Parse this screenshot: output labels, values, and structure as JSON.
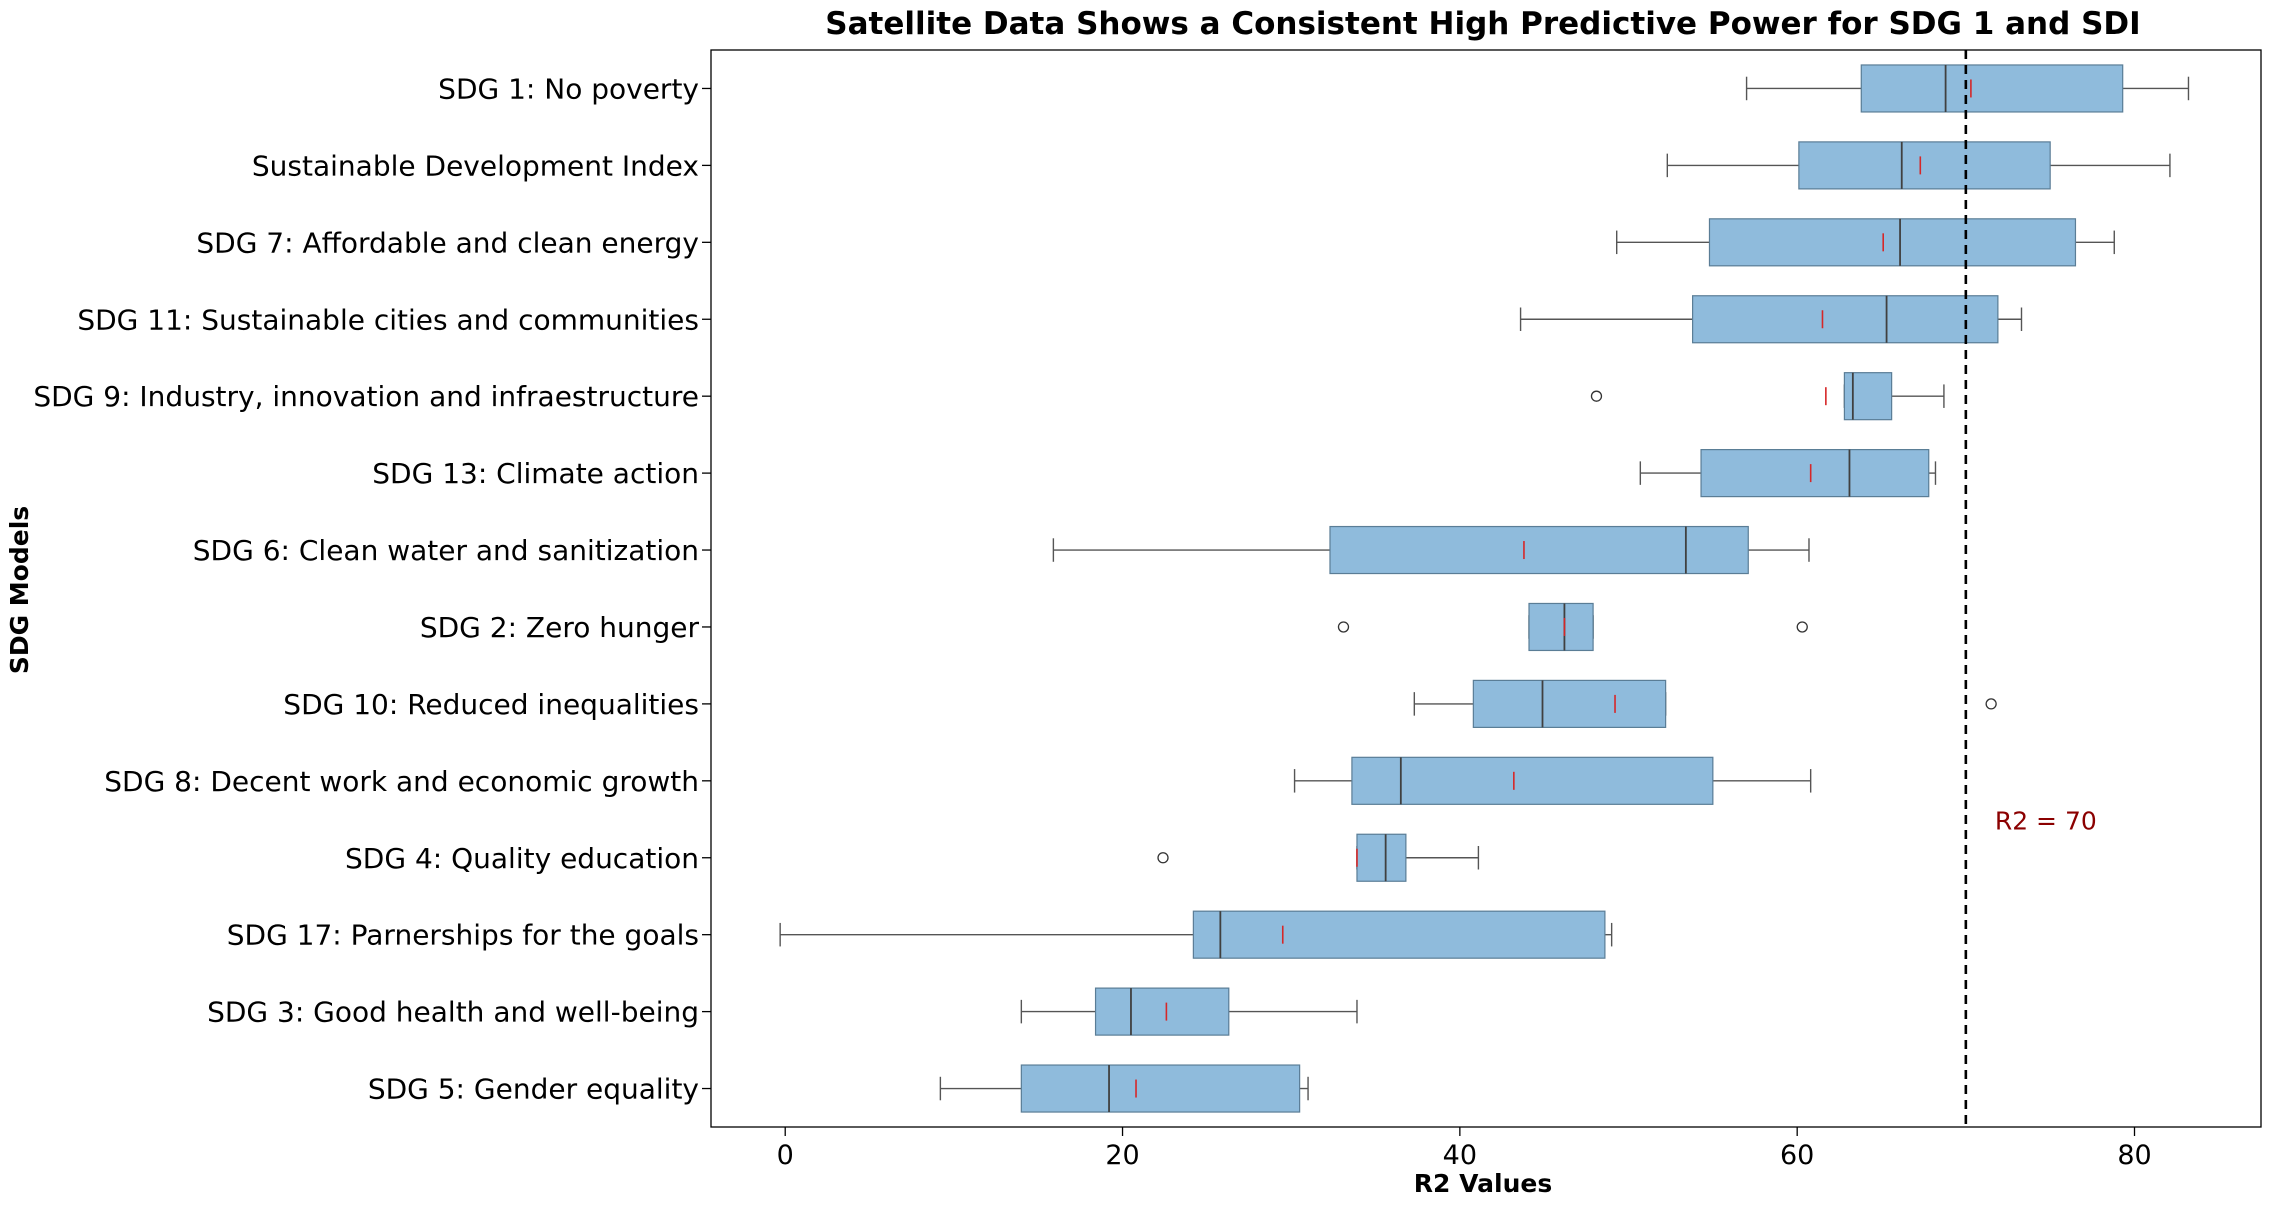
{
  "chart_data": {
    "type": "box",
    "orientation": "horizontal",
    "title": "Satellite Data Shows a Consistent High Predictive Power for SDG 1 and SDI",
    "xlabel": "R2 Values",
    "ylabel": "SDG Models",
    "xlim": [
      -4.4,
      87.5
    ],
    "xticks": [
      0,
      20,
      40,
      60,
      80
    ],
    "grid": false,
    "box_color": "#8fbbdc",
    "box_edge_color": "#5a7d96",
    "median_color": "#404040",
    "mean_color": "#d62728",
    "reference_line": {
      "value": 70,
      "label": "R2 = 70",
      "label_color": "#8b0000",
      "label_y_after_category": "SDG 8: Decent work and economic growth"
    },
    "categories": [
      "SDG 1: No poverty",
      "Sustainable Development Index",
      "SDG 7: Affordable and clean energy",
      "SDG 11: Sustainable cities and communities",
      "SDG 9: Industry, innovation and infraestructure",
      "SDG 13: Climate action",
      "SDG 6: Clean water and sanitization",
      "SDG 2: Zero hunger",
      "SDG 10: Reduced inequalities",
      "SDG 8: Decent work and economic growth",
      "SDG 4: Quality education",
      "SDG 17: Parnerships for the goals",
      "SDG 3: Good health and well-being",
      "SDG 5: Gender equality"
    ],
    "boxes": [
      {
        "whisker_low": 57.0,
        "q1": 63.8,
        "median": 68.8,
        "q3": 79.3,
        "whisker_high": 83.2,
        "mean": 70.3,
        "outliers": []
      },
      {
        "whisker_low": 52.3,
        "q1": 60.1,
        "median": 66.2,
        "q3": 75.0,
        "whisker_high": 82.1,
        "mean": 67.3,
        "outliers": []
      },
      {
        "whisker_low": 49.3,
        "q1": 54.8,
        "median": 66.1,
        "q3": 76.5,
        "whisker_high": 78.8,
        "mean": 65.1,
        "outliers": []
      },
      {
        "whisker_low": 43.6,
        "q1": 53.8,
        "median": 65.3,
        "q3": 71.9,
        "whisker_high": 73.3,
        "mean": 61.5,
        "outliers": []
      },
      {
        "whisker_low": 62.8,
        "q1": 62.8,
        "median": 63.3,
        "q3": 65.6,
        "whisker_high": 68.7,
        "mean": 61.7,
        "outliers": [
          48.1
        ]
      },
      {
        "whisker_low": 50.7,
        "q1": 54.3,
        "median": 63.1,
        "q3": 67.8,
        "whisker_high": 68.2,
        "mean": 60.8,
        "outliers": []
      },
      {
        "whisker_low": 15.9,
        "q1": 32.3,
        "median": 53.4,
        "q3": 57.1,
        "whisker_high": 60.7,
        "mean": 43.8,
        "outliers": []
      },
      {
        "whisker_low": 44.1,
        "q1": 44.1,
        "median": 46.2,
        "q3": 47.9,
        "whisker_high": 47.9,
        "mean": 46.2,
        "outliers": [
          33.1,
          60.3
        ]
      },
      {
        "whisker_low": 37.3,
        "q1": 40.8,
        "median": 44.9,
        "q3": 52.2,
        "whisker_high": 52.2,
        "mean": 49.2,
        "outliers": [
          71.5
        ]
      },
      {
        "whisker_low": 30.2,
        "q1": 33.6,
        "median": 36.5,
        "q3": 55.0,
        "whisker_high": 60.8,
        "mean": 43.2,
        "outliers": []
      },
      {
        "whisker_low": 33.9,
        "q1": 33.9,
        "median": 35.6,
        "q3": 36.8,
        "whisker_high": 41.1,
        "mean": 33.9,
        "outliers": [
          22.4
        ]
      },
      {
        "whisker_low": -0.3,
        "q1": 24.2,
        "median": 25.8,
        "q3": 48.6,
        "whisker_high": 49.0,
        "mean": 29.5,
        "outliers": []
      },
      {
        "whisker_low": 14.0,
        "q1": 18.4,
        "median": 20.5,
        "q3": 26.3,
        "whisker_high": 33.9,
        "mean": 22.6,
        "outliers": []
      },
      {
        "whisker_low": 9.2,
        "q1": 14.0,
        "median": 19.2,
        "q3": 30.5,
        "whisker_high": 31.0,
        "mean": 20.8,
        "outliers": []
      }
    ]
  }
}
